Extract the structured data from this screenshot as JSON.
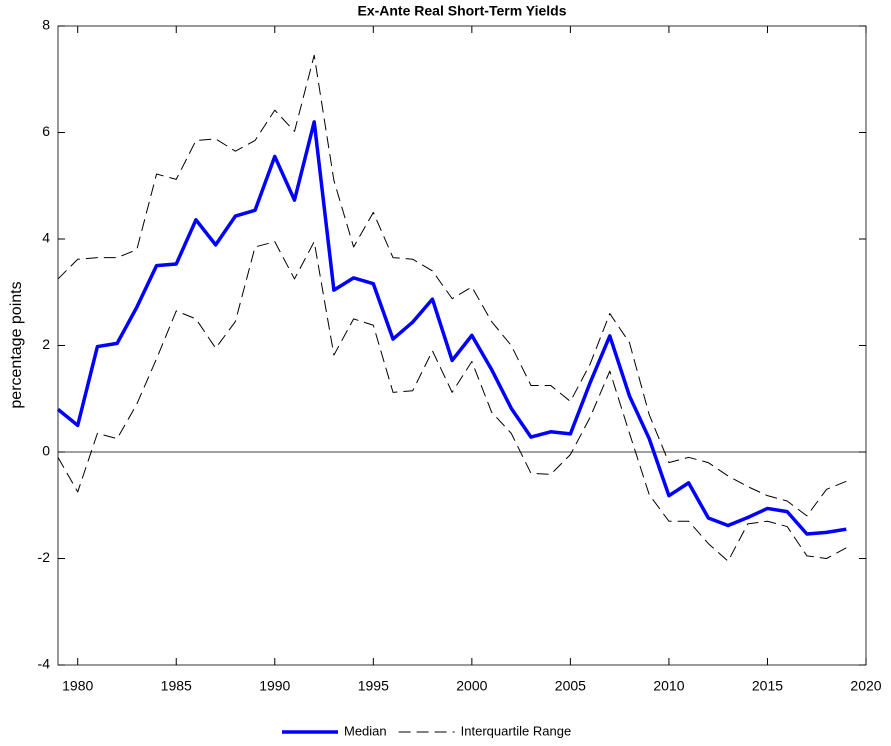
{
  "chart_data": {
    "type": "line",
    "title": "Ex-Ante Real Short-Term Yields",
    "ylabel": "percentage points",
    "x": [
      1979,
      1980,
      1981,
      1982,
      1983,
      1984,
      1985,
      1986,
      1987,
      1988,
      1989,
      1990,
      1991,
      1992,
      1993,
      1994,
      1995,
      1996,
      1997,
      1998,
      1999,
      2000,
      2001,
      2002,
      2003,
      2004,
      2005,
      2006,
      2007,
      2008,
      2009,
      2010,
      2011,
      2012,
      2013,
      2014,
      2015,
      2016,
      2017,
      2018,
      2019
    ],
    "series": [
      {
        "name": "Median",
        "color": "#0000ff",
        "style": "solid",
        "width": 3.5,
        "values": [
          0.8,
          0.5,
          1.98,
          2.04,
          2.72,
          3.5,
          3.53,
          4.36,
          3.89,
          4.43,
          4.54,
          5.55,
          4.73,
          6.2,
          3.04,
          3.27,
          3.16,
          2.12,
          2.44,
          2.87,
          1.72,
          2.19,
          1.55,
          0.82,
          0.28,
          0.38,
          0.34,
          1.3,
          2.18,
          1.05,
          0.25,
          -0.82,
          -0.58,
          -1.24,
          -1.38,
          -1.23,
          -1.06,
          -1.12,
          -1.54,
          -1.51,
          -1.45
        ]
      },
      {
        "name": "Interquartile Range",
        "color": "#000000",
        "style": "dashed",
        "width": 1,
        "upper": [
          3.25,
          3.62,
          3.65,
          3.65,
          3.8,
          5.22,
          5.12,
          5.85,
          5.88,
          5.65,
          5.85,
          6.42,
          6.02,
          7.45,
          5.1,
          3.85,
          4.5,
          3.65,
          3.62,
          3.4,
          2.88,
          3.1,
          2.45,
          2.0,
          1.25,
          1.25,
          0.95,
          1.65,
          2.6,
          2.05,
          0.7,
          -0.2,
          -0.1,
          -0.2,
          -0.45,
          -0.65,
          -0.82,
          -0.92,
          -1.2,
          -0.7,
          -0.55
        ],
        "lower": [
          -0.1,
          -0.75,
          0.35,
          0.25,
          0.9,
          1.75,
          2.65,
          2.5,
          1.95,
          2.45,
          3.85,
          3.95,
          3.25,
          3.95,
          1.82,
          2.5,
          2.38,
          1.12,
          1.15,
          1.9,
          1.12,
          1.7,
          0.75,
          0.35,
          -0.4,
          -0.42,
          -0.05,
          0.65,
          1.52,
          0.35,
          -0.8,
          -1.3,
          -1.3,
          -1.72,
          -2.05,
          -1.35,
          -1.3,
          -1.4,
          -1.95,
          -2.0,
          -1.8
        ]
      }
    ],
    "xlim": [
      1979,
      2020
    ],
    "xticks": [
      1980,
      1985,
      1990,
      1995,
      2000,
      2005,
      2010,
      2015,
      2020
    ],
    "ylim": [
      -4,
      8
    ],
    "yticks": [
      -4,
      -2,
      0,
      2,
      4,
      6,
      8
    ],
    "zero_line": true,
    "legend": "bottom"
  }
}
